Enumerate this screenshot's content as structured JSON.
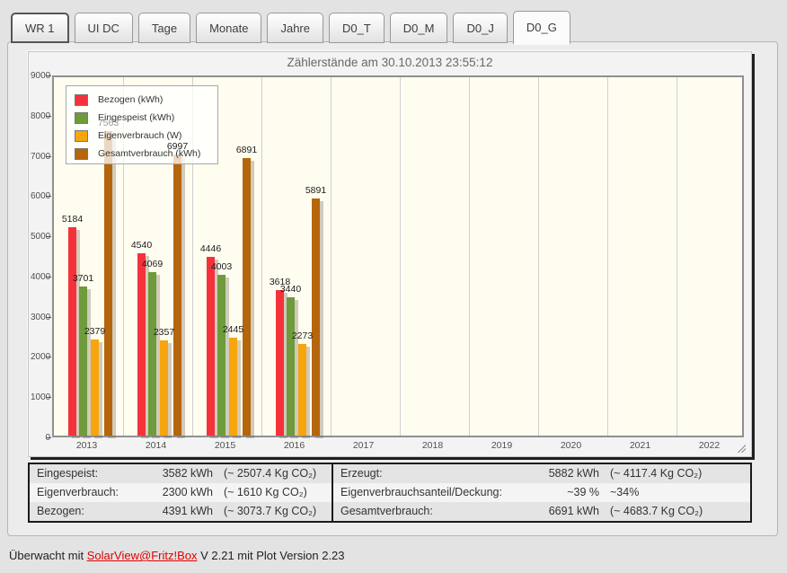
{
  "tabs": {
    "items": [
      {
        "label": "WR 1",
        "selected": false,
        "focused": true
      },
      {
        "label": "UI DC",
        "selected": false,
        "focused": false
      },
      {
        "label": "Tage",
        "selected": false,
        "focused": false
      },
      {
        "label": "Monate",
        "selected": false,
        "focused": false
      },
      {
        "label": "Jahre",
        "selected": false,
        "focused": false
      },
      {
        "label": "D0_T",
        "selected": false,
        "focused": false
      },
      {
        "label": "D0_M",
        "selected": false,
        "focused": false
      },
      {
        "label": "D0_J",
        "selected": false,
        "focused": false
      },
      {
        "label": "D0_G",
        "selected": true,
        "focused": false
      }
    ]
  },
  "chart_data": {
    "type": "bar",
    "title": "Zählerstände am 30.10.2013 23:55:12",
    "categories": [
      "2013",
      "2014",
      "2015",
      "2016",
      "2017",
      "2018",
      "2019",
      "2020",
      "2021",
      "2022"
    ],
    "series": [
      {
        "name": "Bezogen (kWh)",
        "color": "#f5323c",
        "values": [
          5184,
          4540,
          4446,
          3618,
          null,
          null,
          null,
          null,
          null,
          null
        ]
      },
      {
        "name": "Eingespeist (kWh)",
        "color": "#6e9b3c",
        "values": [
          3701,
          4069,
          4003,
          3440,
          null,
          null,
          null,
          null,
          null,
          null
        ]
      },
      {
        "name": "Eigenverbrauch (W)",
        "color": "#f7a50d",
        "values": [
          2379,
          2357,
          2445,
          2273,
          null,
          null,
          null,
          null,
          null,
          null
        ]
      },
      {
        "name": "Gesamtverbrauch (kWh)",
        "color": "#b5650b",
        "values": [
          7563,
          6997,
          6891,
          5891,
          null,
          null,
          null,
          null,
          null,
          null
        ],
        "label_colors": [
          "#9a9a9a",
          null,
          null,
          null,
          null,
          null,
          null,
          null,
          null,
          null
        ]
      }
    ],
    "ylim": [
      0,
      9000
    ],
    "yticks": [
      0,
      1000,
      2000,
      3000,
      4000,
      5000,
      6000,
      7000,
      8000,
      9000
    ],
    "grid": "vertical-only",
    "legend_position": "top-left"
  },
  "table": {
    "left_rows": [
      {
        "label": "Eingespeist:",
        "value": "3582 kWh",
        "co2": "(~ 2507.4 Kg CO₂)"
      },
      {
        "label": "Eigenverbrauch:",
        "value": "2300 kWh",
        "co2": "(~ 1610 Kg CO₂)"
      },
      {
        "label": "Bezogen:",
        "value": "4391 kWh",
        "co2": "(~ 3073.7 Kg CO₂)"
      }
    ],
    "right_rows": [
      {
        "label": "Erzeugt:",
        "value": "5882 kWh",
        "co2": "(~ 4117.4 Kg CO₂)"
      },
      {
        "label": "Eigenverbrauchsanteil/Deckung:",
        "value": "~39 %",
        "co2": "~34%"
      },
      {
        "label": "Gesamtverbrauch:",
        "value": "6691 kWh",
        "co2": "(~ 4683.7 Kg CO₂)"
      }
    ]
  },
  "footer": {
    "prefix": "Überwacht mit ",
    "link": "SolarView@Fritz!Box",
    "suffix": " V 2.21 mit Plot Version 2.23"
  }
}
